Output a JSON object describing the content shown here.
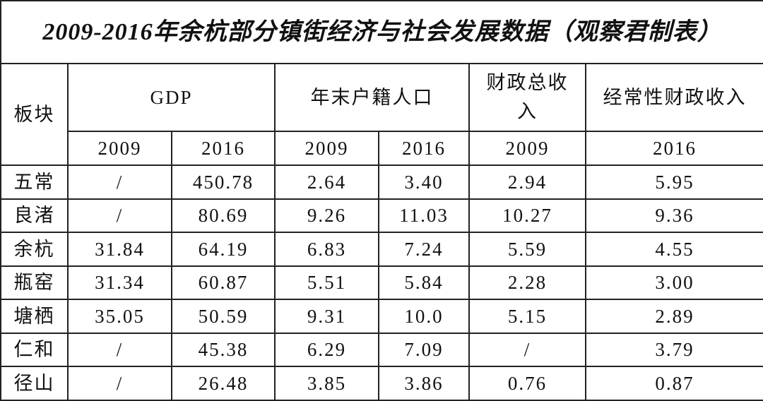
{
  "title": "2009-2016年余杭部分镇街经济与社会发展数据（观察君制表）",
  "table": {
    "header": [
      "板块",
      "GDP",
      "年末户籍人口",
      "财政总收入",
      "经常性财政收入"
    ],
    "years": [
      "2009",
      "2016",
      "2009",
      "2016",
      "2009",
      "2016"
    ],
    "rows": [
      [
        "五常",
        "/",
        "450.78",
        "2.64",
        "3.40",
        "2.94",
        "5.95"
      ],
      [
        "良渚",
        "/",
        "80.69",
        "9.26",
        "11.03",
        "10.27",
        "9.36"
      ],
      [
        "余杭",
        "31.84",
        "64.19",
        "6.83",
        "7.24",
        "5.59",
        "4.55"
      ],
      [
        "瓶窑",
        "31.34",
        "60.87",
        "5.51",
        "5.84",
        "2.28",
        "3.00"
      ],
      [
        "塘栖",
        "35.05",
        "50.59",
        "9.31",
        "10.0",
        "5.15",
        "2.89"
      ],
      [
        "仁和",
        "/",
        "45.38",
        "6.29",
        "7.09",
        "/",
        "3.79"
      ],
      [
        "径山",
        "/",
        "26.48",
        "3.85",
        "3.86",
        "0.76",
        "0.87"
      ]
    ]
  }
}
